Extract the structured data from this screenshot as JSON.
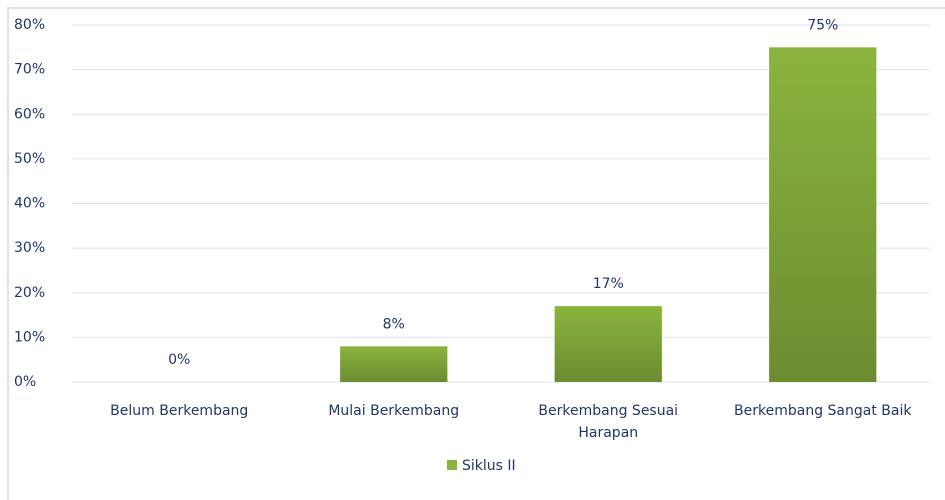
{
  "chart_data": {
    "type": "bar",
    "categories": [
      "Belum Berkembang",
      "Mulai Berkembang",
      "Berkembang Sesuai Harapan",
      "Berkembang Sangat Baik"
    ],
    "series": [
      {
        "name": "Siklus II",
        "color": "#8ab43e",
        "values": [
          0,
          8,
          17,
          75
        ],
        "value_labels": [
          "0%",
          "8%",
          "17%",
          "75%"
        ]
      }
    ],
    "ylim": [
      0,
      80
    ],
    "yticks": [
      {
        "value": 0,
        "label": "0%"
      },
      {
        "value": 10,
        "label": "10%"
      },
      {
        "value": 20,
        "label": "20%"
      },
      {
        "value": 30,
        "label": "30%"
      },
      {
        "value": 40,
        "label": "40%"
      },
      {
        "value": 50,
        "label": "50%"
      },
      {
        "value": 60,
        "label": "60%"
      },
      {
        "value": 70,
        "label": "70%"
      },
      {
        "value": 80,
        "label": "80%"
      }
    ],
    "grid": true,
    "legend": "bottom"
  }
}
